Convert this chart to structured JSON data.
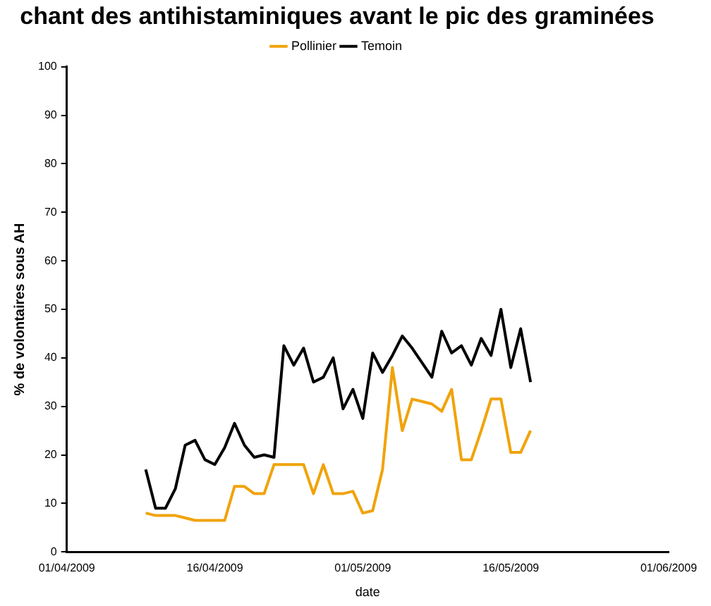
{
  "chart_data": {
    "type": "line",
    "title": "chant des antihistaminiques avant le pic des graminées",
    "xlabel": "date",
    "ylabel": "% de volontaires sous AH",
    "x": [
      "2009-04-09",
      "2009-04-10",
      "2009-04-11",
      "2009-04-12",
      "2009-04-13",
      "2009-04-14",
      "2009-04-15",
      "2009-04-16",
      "2009-04-17",
      "2009-04-18",
      "2009-04-19",
      "2009-04-20",
      "2009-04-21",
      "2009-04-22",
      "2009-04-23",
      "2009-04-24",
      "2009-04-25",
      "2009-04-26",
      "2009-04-27",
      "2009-04-28",
      "2009-04-29",
      "2009-04-30",
      "2009-05-01",
      "2009-05-02",
      "2009-05-03",
      "2009-05-04",
      "2009-05-05",
      "2009-05-06",
      "2009-05-07",
      "2009-05-08",
      "2009-05-09",
      "2009-05-10",
      "2009-05-11",
      "2009-05-12",
      "2009-05-13",
      "2009-05-14",
      "2009-05-15",
      "2009-05-16",
      "2009-05-17",
      "2009-05-18"
    ],
    "series": [
      {
        "name": "Pollinier",
        "color": "#f0a30a",
        "values": [
          8,
          7.5,
          7.5,
          7.5,
          7,
          6.5,
          6.5,
          6.5,
          6.5,
          13.5,
          13.5,
          12,
          12,
          18,
          18,
          18,
          18,
          12,
          18,
          12,
          12,
          12.5,
          8,
          8.5,
          17,
          38,
          25,
          31.5,
          31,
          30.5,
          29,
          33.5,
          19,
          19,
          25,
          31.5,
          31.5,
          20.5,
          20.5,
          25
        ]
      },
      {
        "name": "Temoin",
        "color": "#000000",
        "values": [
          17,
          9,
          9,
          13,
          22,
          23,
          19,
          18,
          21.5,
          26.5,
          22,
          19.5,
          20,
          19.5,
          42.5,
          38.5,
          42,
          35,
          36,
          40,
          29.5,
          33.5,
          27.5,
          41,
          37,
          40.5,
          44.5,
          42,
          39,
          36,
          45.5,
          41,
          42.5,
          38.5,
          44,
          40.5,
          50,
          38,
          46,
          35
        ]
      }
    ],
    "xlim": [
      "2009-04-01",
      "2009-06-01"
    ],
    "xticks": [
      {
        "value": "2009-04-01",
        "label": "01/04/2009"
      },
      {
        "value": "2009-04-16",
        "label": "16/04/2009"
      },
      {
        "value": "2009-05-01",
        "label": "01/05/2009"
      },
      {
        "value": "2009-05-16",
        "label": "16/05/2009"
      },
      {
        "value": "2009-06-01",
        "label": "01/06/2009"
      }
    ],
    "ylim": [
      0,
      100
    ],
    "yticks": [
      0,
      10,
      20,
      30,
      40,
      50,
      60,
      70,
      80,
      90,
      100
    ],
    "legend": "top",
    "grid": false
  }
}
